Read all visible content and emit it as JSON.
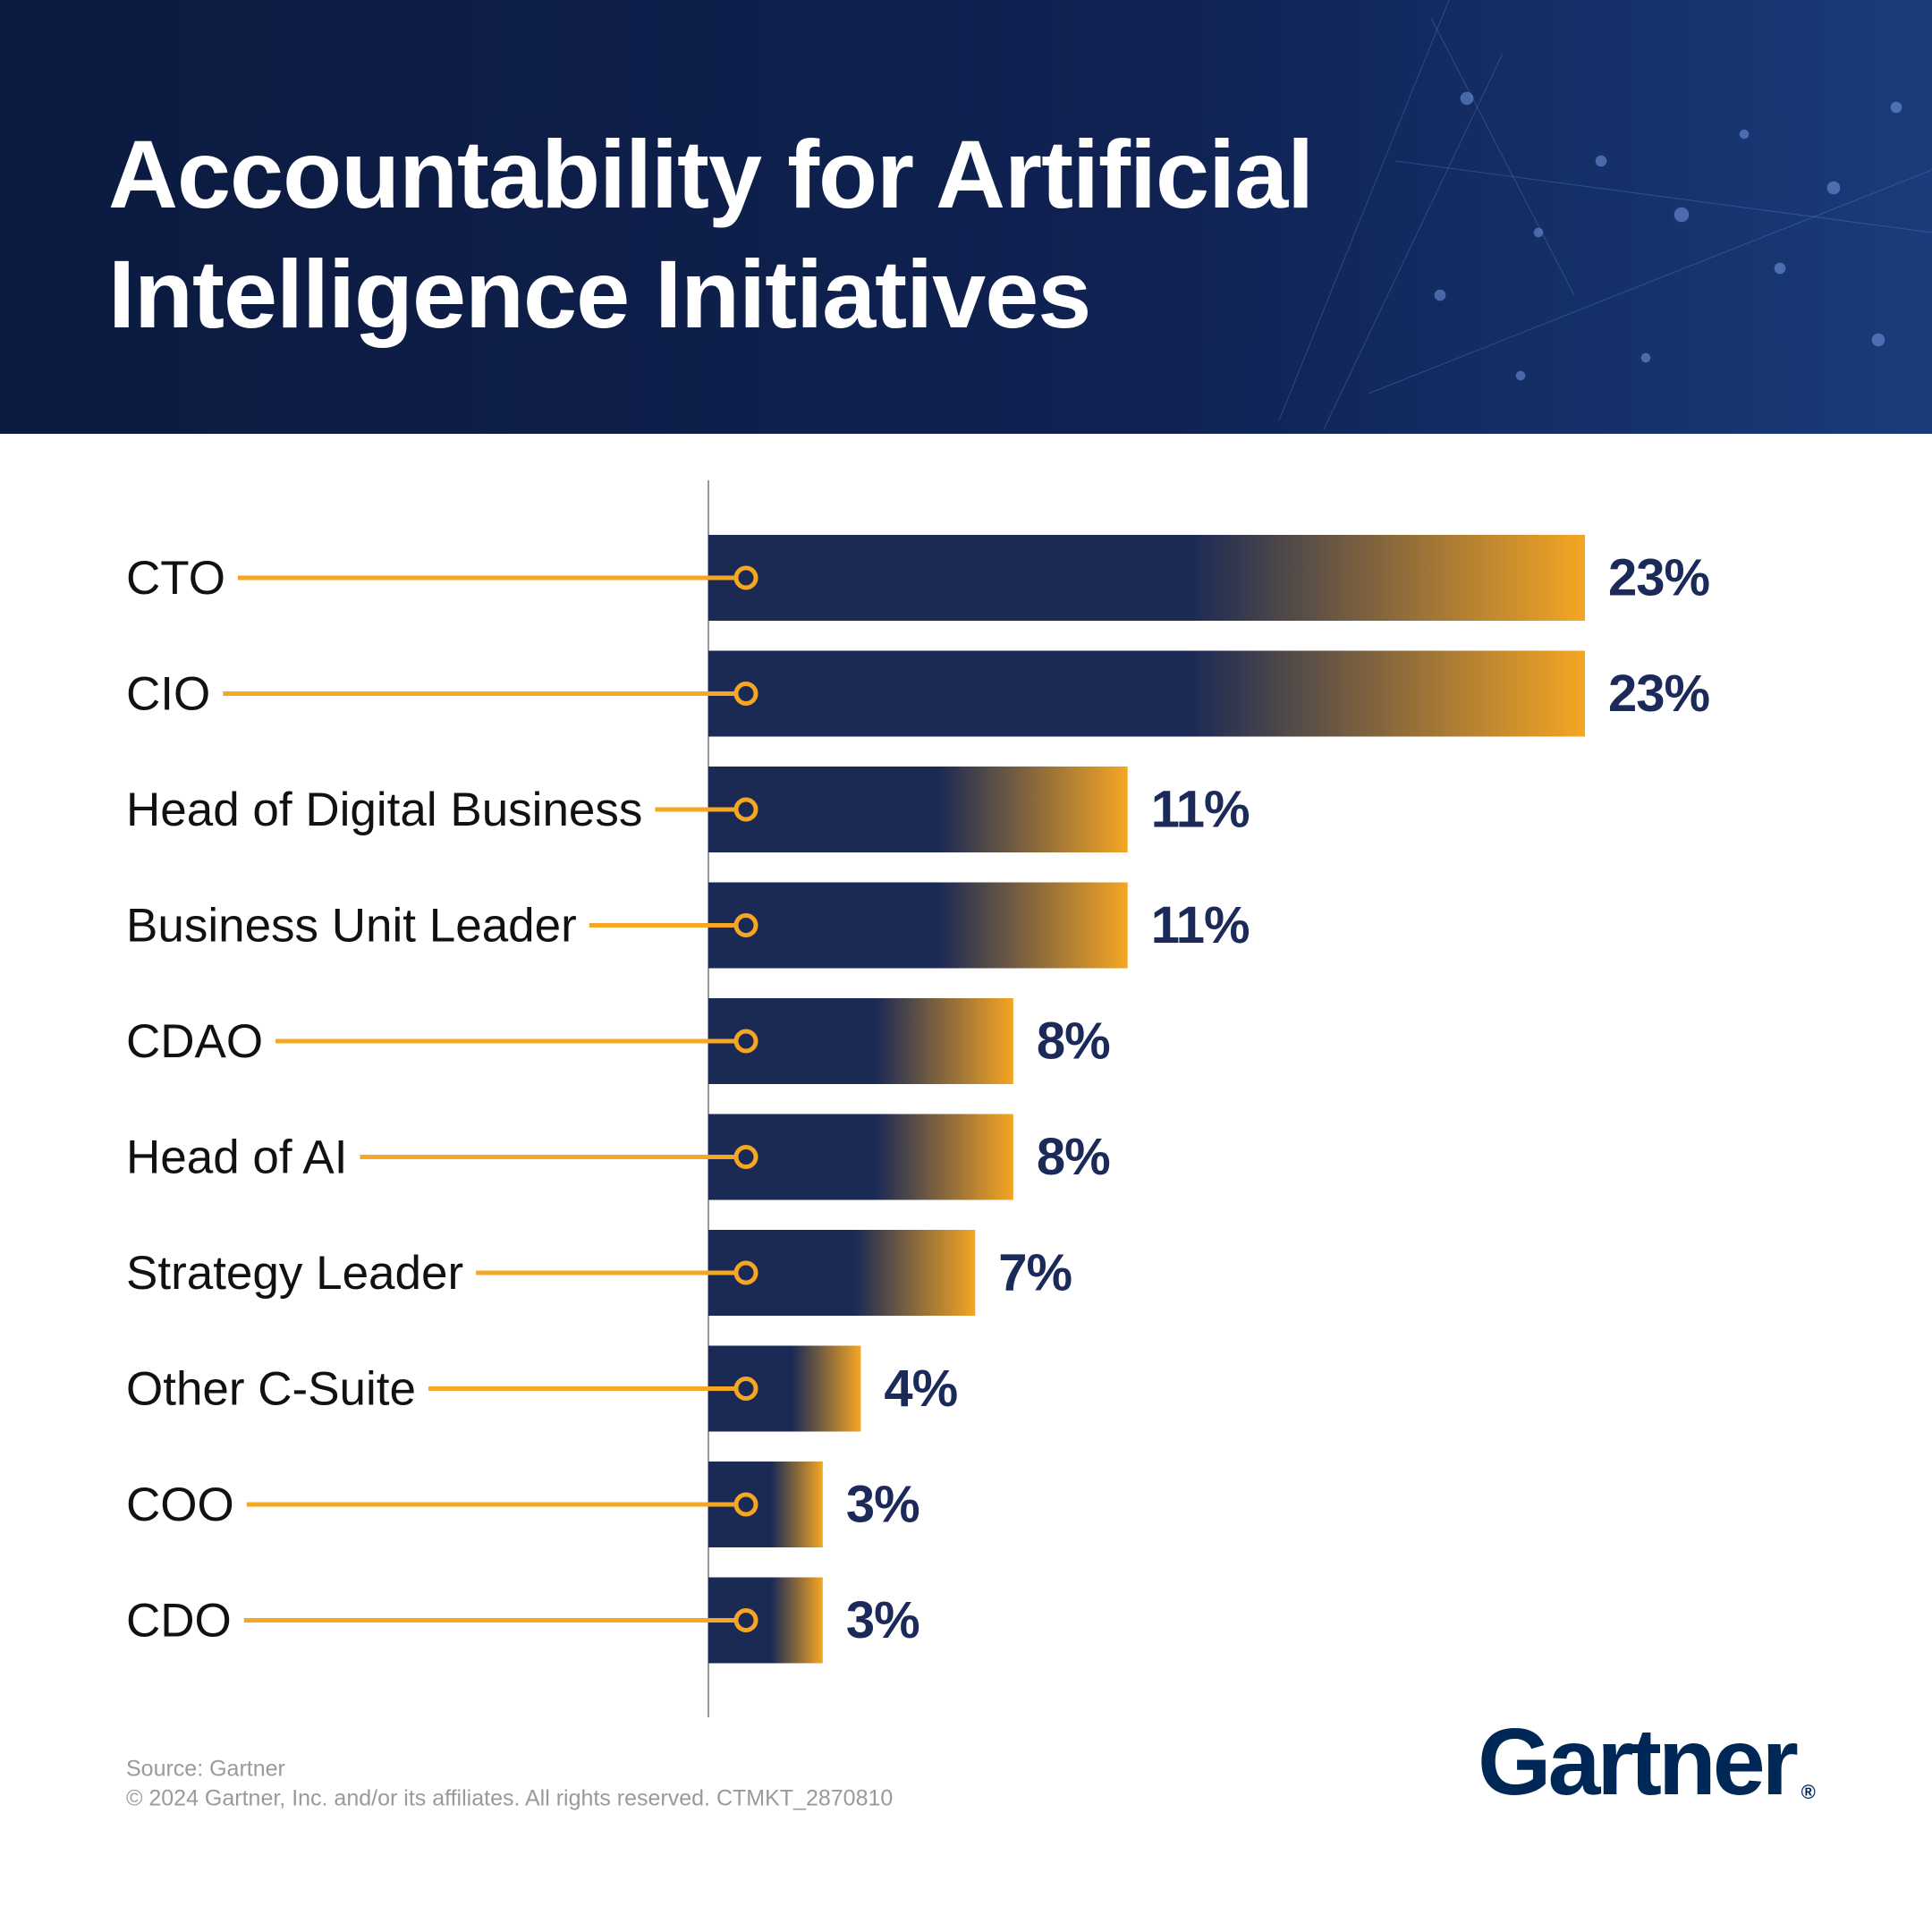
{
  "chart_data": {
    "type": "hbar",
    "title": "Accountability for Artificial Intelligence Initiatives",
    "categories": [
      "CTO",
      "CIO",
      "Head of Digital Business",
      "Business Unit Leader",
      "CDAO",
      "Head of AI",
      "Strategy Leader",
      "Other C-Suite",
      "COO",
      "CDO"
    ],
    "values": [
      23,
      23,
      11,
      11,
      8,
      8,
      7,
      4,
      3,
      3
    ],
    "value_labels": [
      "23%",
      "23%",
      "11%",
      "11%",
      "8%",
      "8%",
      "7%",
      "4%",
      "3%",
      "3%"
    ],
    "color": "#1b2a55",
    "accent_color": "#f5a623"
  },
  "footer": {
    "source": "Source: Gartner",
    "copyright": "© 2024 Gartner, Inc. and/or its affiliates. All rights reserved. CTMKT_2870810",
    "logo": "Gartner",
    "logo_mark": "®"
  }
}
